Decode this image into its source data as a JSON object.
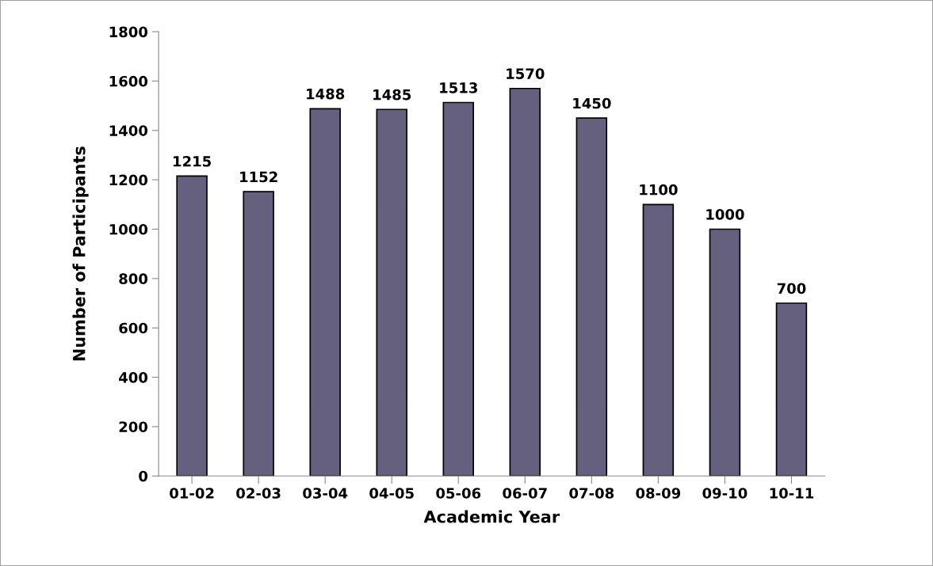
{
  "chart_data": {
    "type": "bar",
    "xlabel": "Academic Year",
    "ylabel": "Number of Participants",
    "categories": [
      "01-02",
      "02-03",
      "03-04",
      "04-05",
      "05-06",
      "06-07",
      "07-08",
      "08-09",
      "09-10",
      "10-11"
    ],
    "values": [
      1215,
      1152,
      1488,
      1485,
      1513,
      1570,
      1450,
      1100,
      1000,
      700
    ],
    "color": "#64607e",
    "ylim": [
      0,
      1800
    ],
    "yticks": [
      0,
      200,
      400,
      600,
      800,
      1000,
      1200,
      1400,
      1600,
      1800
    ],
    "data_labels": true,
    "grid": false,
    "legend": false
  }
}
